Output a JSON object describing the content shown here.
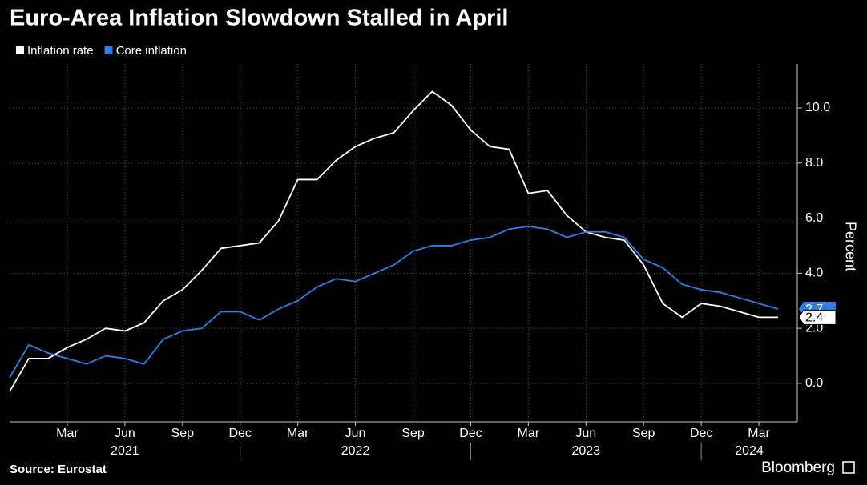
{
  "chart_data": {
    "type": "line",
    "title": "Euro-Area Inflation Slowdown Stalled in April",
    "source": "Source: Eurostat",
    "brand": "Bloomberg",
    "y_axis_label": "Percent",
    "x": [
      "2020-12",
      "2021-01",
      "2021-02",
      "2021-03",
      "2021-04",
      "2021-05",
      "2021-06",
      "2021-07",
      "2021-08",
      "2021-09",
      "2021-10",
      "2021-11",
      "2021-12",
      "2022-01",
      "2022-02",
      "2022-03",
      "2022-04",
      "2022-05",
      "2022-06",
      "2022-07",
      "2022-08",
      "2022-09",
      "2022-10",
      "2022-11",
      "2022-12",
      "2023-01",
      "2023-02",
      "2023-03",
      "2023-04",
      "2023-05",
      "2023-06",
      "2023-07",
      "2023-08",
      "2023-09",
      "2023-10",
      "2023-11",
      "2023-12",
      "2024-01",
      "2024-02",
      "2024-03",
      "2024-04"
    ],
    "series": [
      {
        "name": "Inflation rate",
        "color": "#ffffff",
        "values": [
          -0.3,
          0.9,
          0.9,
          1.3,
          1.6,
          2.0,
          1.9,
          2.2,
          3.0,
          3.4,
          4.1,
          4.9,
          5.0,
          5.1,
          5.9,
          7.4,
          7.4,
          8.1,
          8.6,
          8.9,
          9.1,
          9.9,
          10.6,
          10.1,
          9.2,
          8.6,
          8.5,
          6.9,
          7.0,
          6.1,
          5.5,
          5.3,
          5.2,
          4.3,
          2.9,
          2.4,
          2.9,
          2.8,
          2.6,
          2.4,
          2.4
        ]
      },
      {
        "name": "Core inflation",
        "color": "#2f7fe0",
        "values": [
          0.2,
          1.4,
          1.1,
          0.9,
          0.7,
          1.0,
          0.9,
          0.7,
          1.6,
          1.9,
          2.0,
          2.6,
          2.6,
          2.3,
          2.7,
          3.0,
          3.5,
          3.8,
          3.7,
          4.0,
          4.3,
          4.8,
          5.0,
          5.0,
          5.2,
          5.3,
          5.6,
          5.7,
          5.6,
          5.3,
          5.5,
          5.5,
          5.3,
          4.5,
          4.2,
          3.6,
          3.4,
          3.3,
          3.1,
          2.9,
          2.7
        ]
      }
    ],
    "xlim": [
      "2020-12",
      "2024-05"
    ],
    "xticks": [
      {
        "value": "2021-03",
        "label": "Mar"
      },
      {
        "value": "2021-06",
        "label": "Jun"
      },
      {
        "value": "2021-09",
        "label": "Sep"
      },
      {
        "value": "2021-12",
        "label": "Dec"
      },
      {
        "value": "2022-03",
        "label": "Mar"
      },
      {
        "value": "2022-06",
        "label": "Jun"
      },
      {
        "value": "2022-09",
        "label": "Sep"
      },
      {
        "value": "2022-12",
        "label": "Dec"
      },
      {
        "value": "2023-03",
        "label": "Mar"
      },
      {
        "value": "2023-06",
        "label": "Jun"
      },
      {
        "value": "2023-09",
        "label": "Sep"
      },
      {
        "value": "2023-12",
        "label": "Dec"
      },
      {
        "value": "2024-03",
        "label": "Mar"
      }
    ],
    "years": [
      "2021",
      "2022",
      "2023",
      "2024"
    ],
    "ylim": [
      -1.4,
      11.6
    ],
    "yticks": [
      {
        "value": 0,
        "label": "0.0"
      },
      {
        "value": 2,
        "label": "2.0"
      },
      {
        "value": 4,
        "label": "4.0"
      },
      {
        "value": 6,
        "label": "6.0"
      },
      {
        "value": 8,
        "label": "8.0"
      },
      {
        "value": 10,
        "label": "10.0"
      }
    ],
    "grid": true
  }
}
